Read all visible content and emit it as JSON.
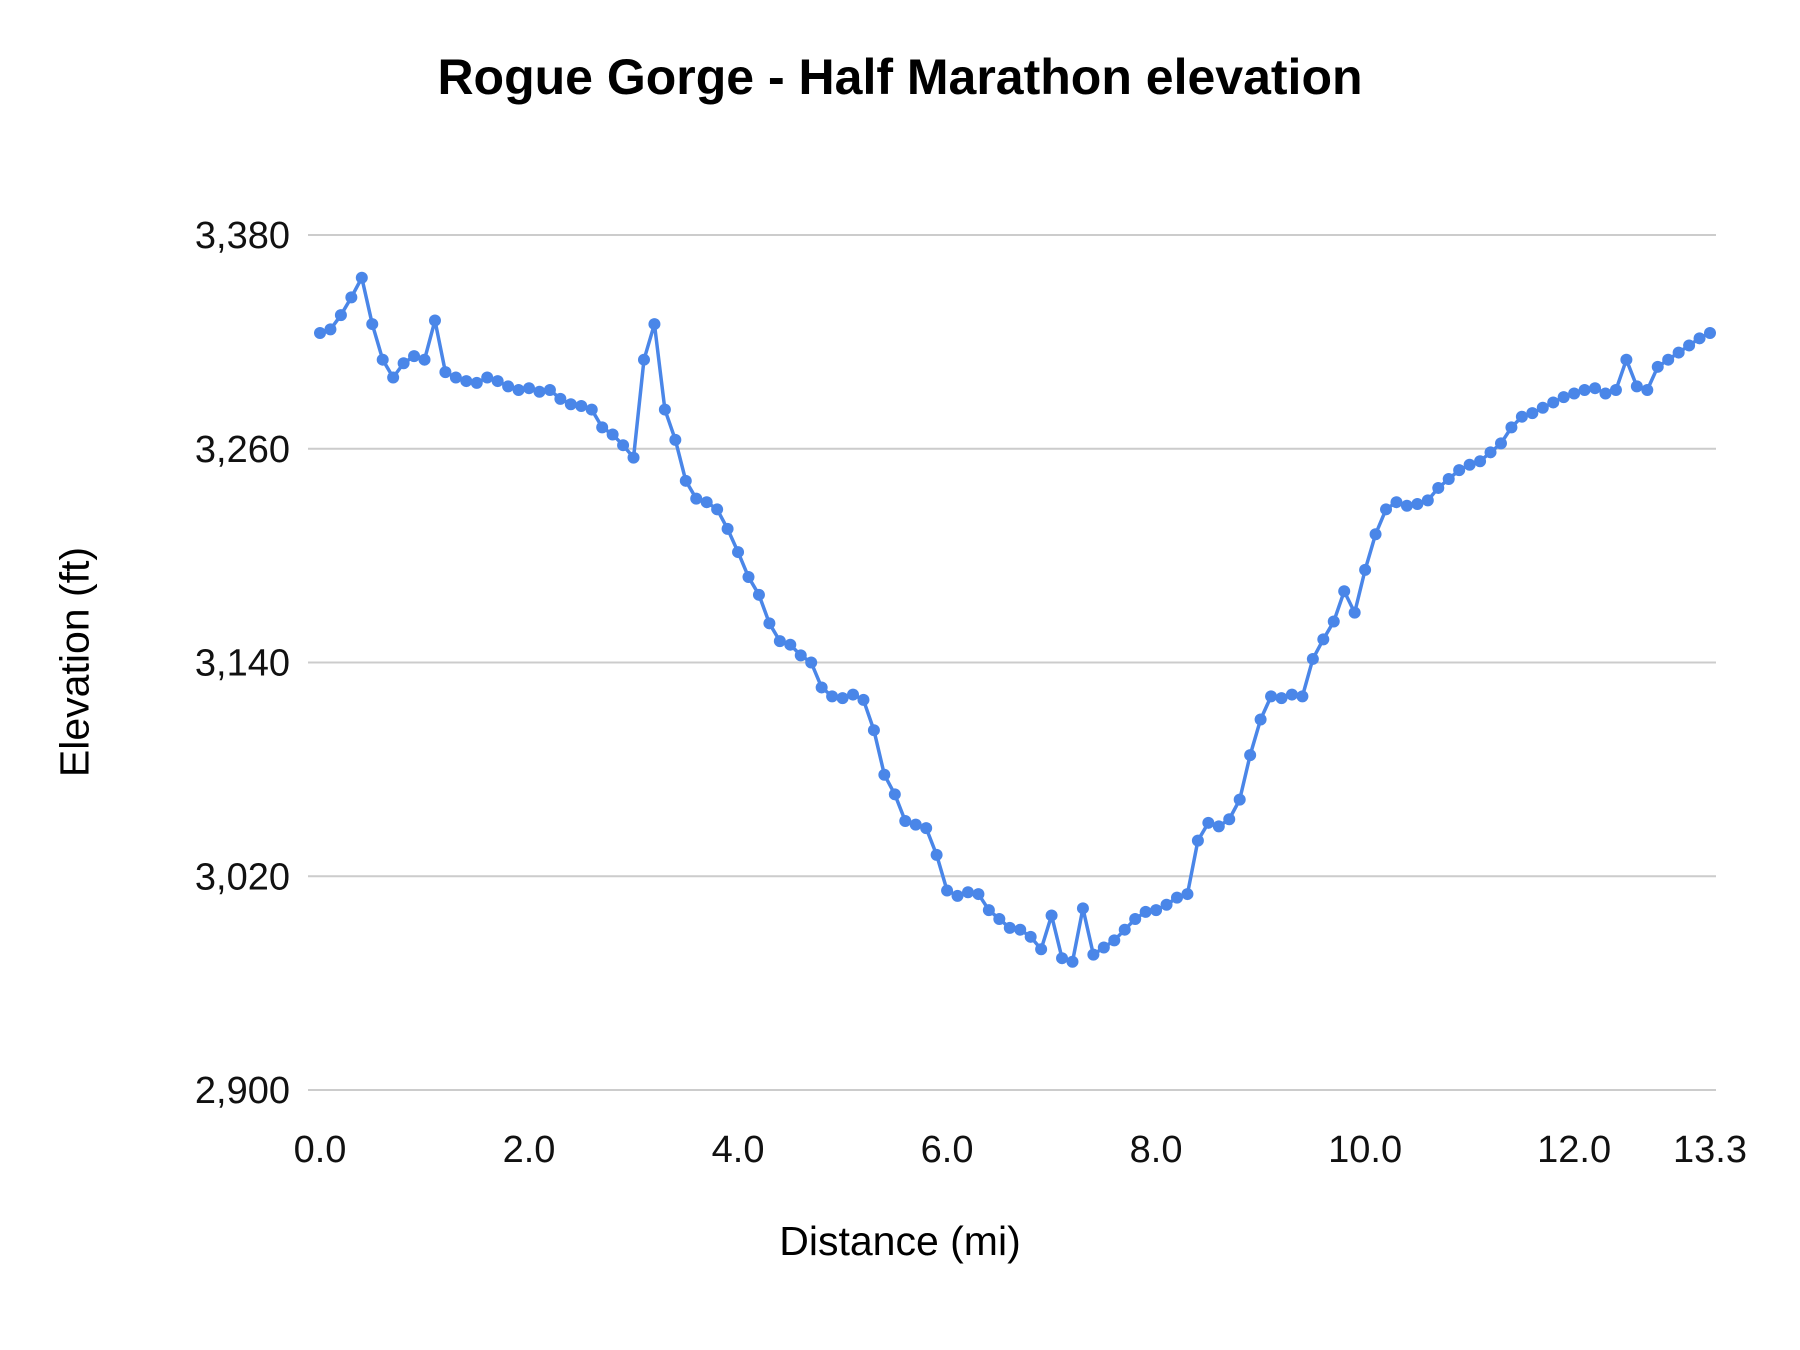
{
  "chart": {
    "title": "Rogue Gorge - Half Marathon elevation",
    "xlabel": "Distance (mi)",
    "ylabel": "Elevation (ft)"
  },
  "chart_data": {
    "type": "line",
    "title": "Rogue Gorge - Half Marathon elevation",
    "xlabel": "Distance (mi)",
    "ylabel": "Elevation (ft)",
    "xlim": [
      0,
      13.3
    ],
    "ylim": [
      2900,
      3380
    ],
    "grid": "horizontal",
    "legend": "none",
    "marker": "circle",
    "line_color": "#4a86e8",
    "gridline_color": "#cccccc",
    "y_ticks": [
      {
        "value": 2900,
        "label": "2,900"
      },
      {
        "value": 3020,
        "label": "3,020"
      },
      {
        "value": 3140,
        "label": "3,140"
      },
      {
        "value": 3260,
        "label": "3,260"
      },
      {
        "value": 3380,
        "label": "3,380"
      }
    ],
    "x_ticks": [
      {
        "value": 0,
        "label": "0.0"
      },
      {
        "value": 2,
        "label": "2.0"
      },
      {
        "value": 4,
        "label": "4.0"
      },
      {
        "value": 6,
        "label": "6.0"
      },
      {
        "value": 8,
        "label": "8.0"
      },
      {
        "value": 10,
        "label": "10.0"
      },
      {
        "value": 12,
        "label": "12.0"
      },
      {
        "value": 13.3,
        "label": "13.3"
      }
    ],
    "x": [
      0.0,
      0.1,
      0.2,
      0.3,
      0.4,
      0.5,
      0.6,
      0.7,
      0.8,
      0.9,
      1.0,
      1.1,
      1.2,
      1.3,
      1.4,
      1.5,
      1.6,
      1.7,
      1.8,
      1.9,
      2.0,
      2.1,
      2.2,
      2.3,
      2.4,
      2.5,
      2.6,
      2.7,
      2.8,
      2.9,
      3.0,
      3.1,
      3.2,
      3.3,
      3.4,
      3.5,
      3.6,
      3.7,
      3.8,
      3.9,
      4.0,
      4.1,
      4.2,
      4.3,
      4.4,
      4.5,
      4.6,
      4.7,
      4.8,
      4.9,
      5.0,
      5.1,
      5.2,
      5.3,
      5.4,
      5.5,
      5.6,
      5.7,
      5.8,
      5.9,
      6.0,
      6.1,
      6.2,
      6.3,
      6.4,
      6.5,
      6.6,
      6.7,
      6.8,
      6.9,
      7.0,
      7.1,
      7.2,
      7.3,
      7.4,
      7.5,
      7.6,
      7.7,
      7.8,
      7.9,
      8.0,
      8.1,
      8.2,
      8.3,
      8.4,
      8.5,
      8.6,
      8.7,
      8.8,
      8.9,
      9.0,
      9.1,
      9.2,
      9.3,
      9.4,
      9.5,
      9.6,
      9.7,
      9.8,
      9.9,
      10.0,
      10.1,
      10.2,
      10.3,
      10.4,
      10.5,
      10.6,
      10.7,
      10.8,
      10.9,
      11.0,
      11.1,
      11.2,
      11.3,
      11.4,
      11.5,
      11.6,
      11.7,
      11.8,
      11.9,
      12.0,
      12.1,
      12.2,
      12.3,
      12.4,
      12.5,
      12.6,
      12.7,
      12.8,
      12.9,
      13.0,
      13.1,
      13.2,
      13.3
    ],
    "y": [
      3325,
      3327,
      3335,
      3345,
      3356,
      3330,
      3310,
      3300,
      3308,
      3312,
      3310,
      3332,
      3303,
      3300,
      3298,
      3297,
      3300,
      3298,
      3295,
      3293,
      3294,
      3292,
      3293,
      3288,
      3285,
      3284,
      3282,
      3272,
      3268,
      3262,
      3255,
      3310,
      3330,
      3282,
      3265,
      3242,
      3232,
      3230,
      3226,
      3215,
      3202,
      3188,
      3178,
      3162,
      3152,
      3150,
      3144,
      3140,
      3126,
      3121,
      3120,
      3122,
      3119,
      3102,
      3077,
      3066,
      3051,
      3049,
      3047,
      3032,
      3012,
      3009,
      3011,
      3010,
      3001,
      2996,
      2991,
      2990,
      2986,
      2979,
      2998,
      2974,
      2972,
      3002,
      2976,
      2980,
      2984,
      2990,
      2996,
      3000,
      3001,
      3004,
      3008,
      3010,
      3040,
      3050,
      3048,
      3052,
      3063,
      3088,
      3108,
      3121,
      3120,
      3122,
      3121,
      3142,
      3153,
      3163,
      3180,
      3168,
      3192,
      3212,
      3226,
      3230,
      3228,
      3229,
      3231,
      3238,
      3243,
      3248,
      3251,
      3253,
      3258,
      3263,
      3272,
      3278,
      3280,
      3283,
      3286,
      3289,
      3291,
      3293,
      3294,
      3291,
      3293,
      3310,
      3295,
      3293,
      3306,
      3310,
      3314,
      3318,
      3322,
      3325
    ]
  }
}
